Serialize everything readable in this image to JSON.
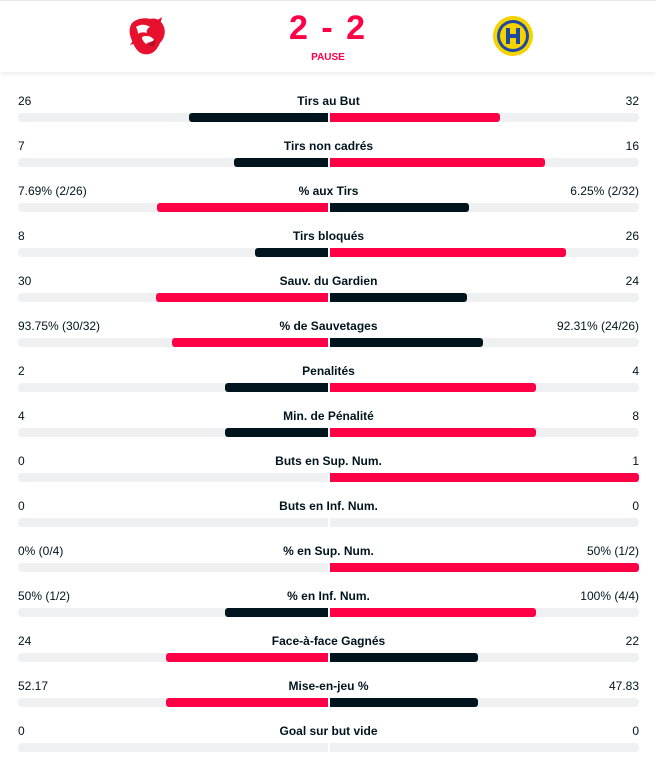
{
  "match": {
    "home_team": "Lausanne HC",
    "away_team": "HC Davos",
    "home_score": "2",
    "away_score": "2",
    "score_separator": "-",
    "status": "PAUSE"
  },
  "colors": {
    "accent": "#ff0046",
    "dark": "#00141e",
    "track": "#eef0f2"
  },
  "stats": [
    {
      "label": "Tirs au But",
      "home": "26",
      "away": "32",
      "home_value": 26,
      "away_value": 32
    },
    {
      "label": "Tirs non cadrés",
      "home": "7",
      "away": "16",
      "home_value": 7,
      "away_value": 16
    },
    {
      "label": "% aux Tirs",
      "home": "7.69% (2/26)",
      "away": "6.25% (2/32)",
      "home_value": 7.69,
      "away_value": 6.25
    },
    {
      "label": "Tirs bloqués",
      "home": "8",
      "away": "26",
      "home_value": 8,
      "away_value": 26
    },
    {
      "label": "Sauv. du Gardien",
      "home": "30",
      "away": "24",
      "home_value": 30,
      "away_value": 24
    },
    {
      "label": "% de Sauvetages",
      "home": "93.75% (30/32)",
      "away": "92.31% (24/26)",
      "home_value": 93.75,
      "away_value": 92.31
    },
    {
      "label": "Penalités",
      "home": "2",
      "away": "4",
      "home_value": 2,
      "away_value": 4
    },
    {
      "label": "Min. de Pénalité",
      "home": "4",
      "away": "8",
      "home_value": 4,
      "away_value": 8
    },
    {
      "label": "Buts en Sup. Num.",
      "home": "0",
      "away": "1",
      "home_value": 0,
      "away_value": 1
    },
    {
      "label": "Buts en Inf. Num.",
      "home": "0",
      "away": "0",
      "home_value": 0,
      "away_value": 0
    },
    {
      "label": "% en Sup. Num.",
      "home": "0% (0/4)",
      "away": "50% (1/2)",
      "home_value": 0,
      "away_value": 50
    },
    {
      "label": "% en Inf. Num.",
      "home": "50% (1/2)",
      "away": "100% (4/4)",
      "home_value": 50,
      "away_value": 100
    },
    {
      "label": "Face-à-face Gagnés",
      "home": "24",
      "away": "22",
      "home_value": 24,
      "away_value": 22
    },
    {
      "label": "Mise-en-jeu %",
      "home": "52.17",
      "away": "47.83",
      "home_value": 52.17,
      "away_value": 47.83
    },
    {
      "label": "Goal sur but vide",
      "home": "0",
      "away": "0",
      "home_value": 0,
      "away_value": 0
    }
  ]
}
